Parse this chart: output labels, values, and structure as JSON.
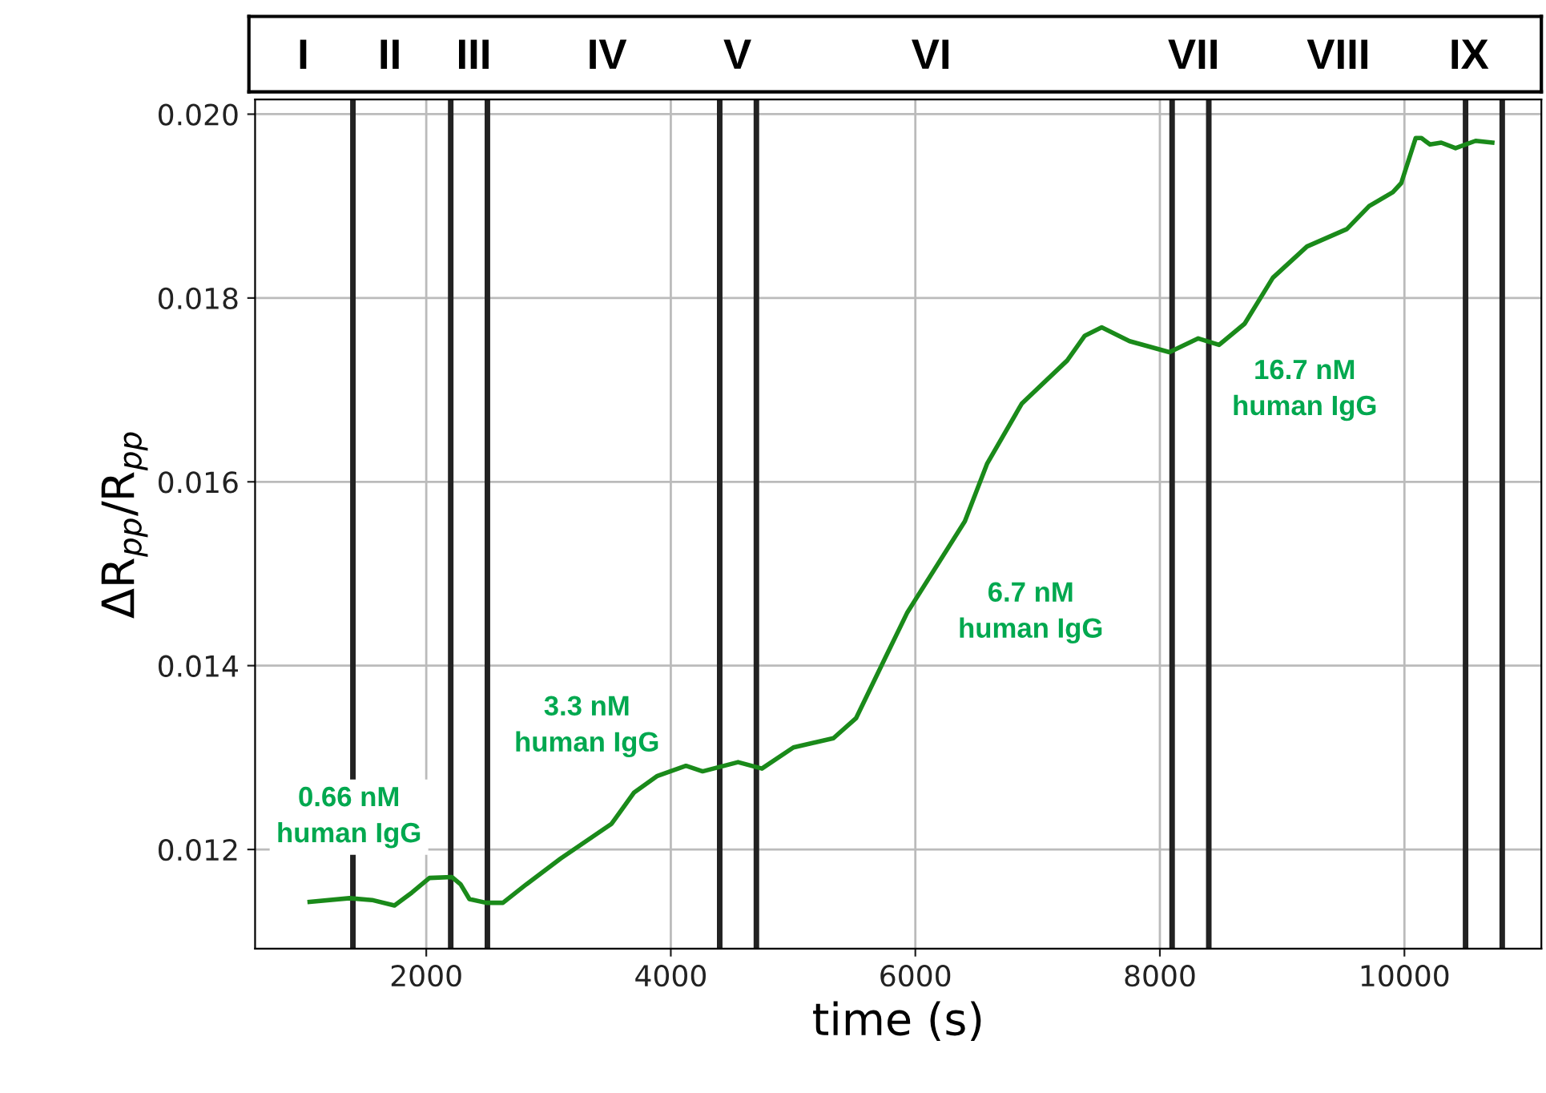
{
  "chart_data": {
    "type": "line",
    "xlabel": "time (s)",
    "ylabel": "ΔR$_{pp}$/R$_{pp}$",
    "x": [
      1046,
      1372,
      1556,
      1740,
      1882,
      2026,
      2209,
      2281,
      2353,
      2490,
      2627,
      2818,
      3098,
      3516,
      3700,
      3890,
      4124,
      4260,
      4550,
      4745,
      5003,
      5330,
      5516,
      5752,
      5935,
      6405,
      6588,
      6870,
      7242,
      7386,
      7524,
      7752,
      8078,
      8314,
      8484,
      8693,
      8924,
      9203,
      9529,
      9712,
      9905,
      9974,
      10092,
      10139,
      10209,
      10301,
      10418,
      10582,
      10719
    ],
    "series": [
      {
        "color": "#1a8a1a",
        "values": [
          0.01143,
          0.01147,
          0.01145,
          0.01139,
          0.01153,
          0.01169,
          0.0117,
          0.01162,
          0.01146,
          0.01142,
          0.01142,
          0.01162,
          0.0119,
          0.01228,
          0.01262,
          0.0128,
          0.01291,
          0.01285,
          0.01295,
          0.01288,
          0.01311,
          0.01321,
          0.01343,
          0.01408,
          0.01458,
          0.01557,
          0.0162,
          0.01685,
          0.01732,
          0.01759,
          0.01768,
          0.01753,
          0.01741,
          0.01756,
          0.01749,
          0.01772,
          0.01822,
          0.01856,
          0.01875,
          0.019,
          0.01915,
          0.01925,
          0.01974,
          0.01974,
          0.01967,
          0.01969,
          0.01963,
          0.01971,
          0.01969
        ]
      }
    ],
    "xlim": [
      600,
      11120
    ],
    "ylim": [
      0.01092,
      0.02016
    ],
    "xticks": [
      2000,
      4000,
      6000,
      8000,
      10000
    ],
    "yticks": [
      0.012,
      0.014,
      0.016,
      0.018,
      {
        "value": 0.02,
        "label": "0.020"
      }
    ],
    "grid": true,
    "marker": "none",
    "line_style": "solid",
    "ref_lines": [
      {
        "axis": "x",
        "value": 1400
      },
      {
        "axis": "x",
        "value": 2200
      },
      {
        "axis": "x",
        "value": 2500
      },
      {
        "axis": "x",
        "value": 4400
      },
      {
        "axis": "x",
        "value": 4700
      },
      {
        "axis": "x",
        "value": 8100
      },
      {
        "axis": "x",
        "value": 8400
      },
      {
        "axis": "x",
        "value": 10500
      },
      {
        "axis": "x",
        "value": 10800
      }
    ],
    "annotations": [
      "I",
      "II",
      "III",
      "IV",
      "V",
      "VI",
      "VII",
      "VIII",
      "IX",
      "0.66 nM\nhuman IgG",
      "3.3 nM\nhuman IgG",
      "6.7 nM\nhuman IgG",
      "16.7 nM\nhuman IgG"
    ]
  }
}
